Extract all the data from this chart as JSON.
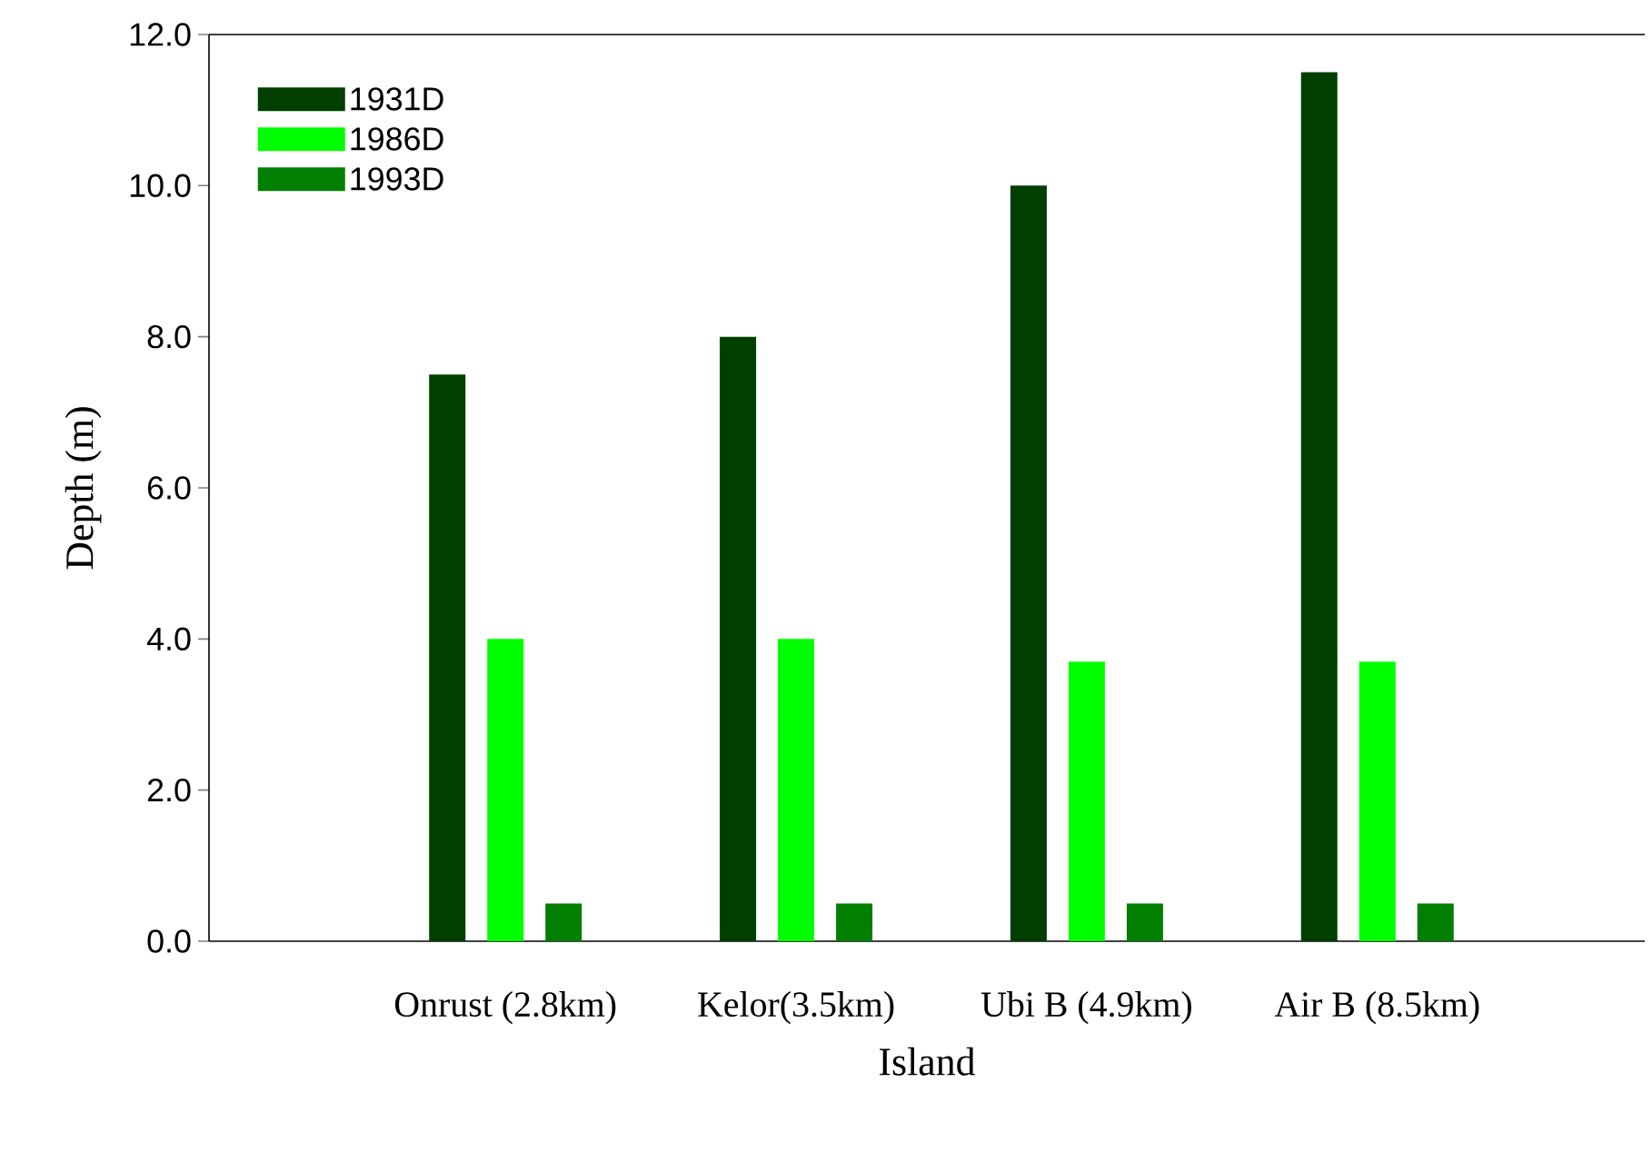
{
  "chart_data": {
    "type": "bar",
    "xlabel": "Island",
    "ylabel": "Depth (m)",
    "categories": [
      "Onrust (2.8km)",
      "Kelor(3.5km)",
      "Ubi B (4.9km)",
      "Air B (8.5km)"
    ],
    "series": [
      {
        "name": "1931D",
        "color": "#003f00",
        "values": [
          7.5,
          8.0,
          10.0,
          11.5
        ]
      },
      {
        "name": "1986D",
        "color": "#00ff00",
        "values": [
          4.0,
          4.0,
          3.7,
          3.7
        ]
      },
      {
        "name": "1993D",
        "color": "#007f00",
        "values": [
          0.5,
          0.5,
          0.5,
          0.5
        ]
      }
    ],
    "ylim": [
      0,
      12
    ],
    "yticks": [
      {
        "value": 0,
        "label": "0.0"
      },
      {
        "value": 2,
        "label": "2.0"
      },
      {
        "value": 4,
        "label": "4.0"
      },
      {
        "value": 6,
        "label": "6.0"
      },
      {
        "value": 8,
        "label": "8.0"
      },
      {
        "value": 10,
        "label": "10.0"
      },
      {
        "value": 12,
        "label": "12.0"
      }
    ],
    "legend": "top left",
    "grid": false
  }
}
